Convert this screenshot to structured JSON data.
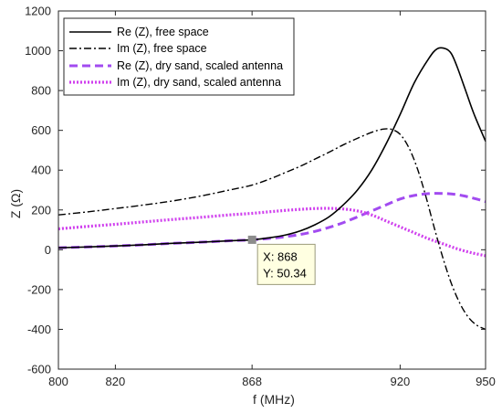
{
  "chart_data": {
    "type": "line",
    "xlabel": "f (MHz)",
    "ylabel": "Z (Ω)",
    "xlim": [
      800,
      950
    ],
    "ylim": [
      -600,
      1200
    ],
    "xticks": [
      800,
      820,
      868,
      920,
      950
    ],
    "yticks": [
      -600,
      -400,
      -200,
      0,
      200,
      400,
      600,
      800,
      1000,
      1200
    ],
    "grid": false,
    "legend_position": "top-left",
    "series": [
      {
        "name": "Re (Z), free space",
        "color": "#000000",
        "style": "solid",
        "x": [
          800,
          810,
          820,
          830,
          840,
          850,
          860,
          868,
          875,
          880,
          885,
          890,
          895,
          900,
          905,
          910,
          915,
          920,
          925,
          930,
          933,
          936,
          938,
          940,
          943,
          946,
          950
        ],
        "y": [
          10,
          14,
          19,
          25,
          32,
          38,
          45,
          50,
          62,
          75,
          95,
          125,
          165,
          225,
          300,
          400,
          530,
          680,
          840,
          960,
          1010,
          1010,
          985,
          920,
          800,
          680,
          545
        ]
      },
      {
        "name": "Im (Z), free space",
        "color": "#000000",
        "style": "dashdot",
        "x": [
          800,
          810,
          820,
          830,
          840,
          850,
          860,
          868,
          875,
          880,
          885,
          890,
          895,
          900,
          905,
          910,
          914,
          917,
          920,
          923,
          926,
          929,
          932,
          935,
          938,
          941,
          944,
          947,
          950
        ],
        "y": [
          175,
          190,
          207,
          225,
          245,
          270,
          300,
          325,
          360,
          390,
          420,
          455,
          490,
          527,
          560,
          590,
          606,
          605,
          580,
          515,
          410,
          270,
          110,
          -40,
          -170,
          -270,
          -340,
          -380,
          -400
        ]
      },
      {
        "name": "Re (Z), dry sand, scaled antenna",
        "color": "#a24bf0",
        "style": "dashed",
        "x": [
          800,
          810,
          820,
          830,
          840,
          850,
          860,
          868,
          875,
          880,
          885,
          890,
          895,
          900,
          905,
          910,
          915,
          920,
          925,
          930,
          935,
          940,
          945,
          950
        ],
        "y": [
          10,
          14,
          19,
          25,
          32,
          38,
          45,
          50,
          58,
          66,
          77,
          92,
          112,
          136,
          165,
          195,
          225,
          255,
          273,
          282,
          283,
          277,
          262,
          242
        ]
      },
      {
        "name": "Im (Z), dry sand, scaled antenna",
        "color": "#d040ee",
        "style": "dotted",
        "x": [
          800,
          810,
          820,
          830,
          840,
          850,
          860,
          868,
          875,
          880,
          885,
          890,
          895,
          900,
          905,
          910,
          915,
          920,
          925,
          930,
          935,
          940,
          945,
          950
        ],
        "y": [
          105,
          117,
          128,
          140,
          152,
          163,
          175,
          183,
          192,
          198,
          203,
          207,
          208,
          205,
          195,
          175,
          145,
          115,
          85,
          55,
          30,
          5,
          -15,
          -30
        ]
      }
    ]
  },
  "datatip": {
    "x_text": "X: 868",
    "y_text": "Y: 50.34",
    "x": 868,
    "y": 50.34
  }
}
